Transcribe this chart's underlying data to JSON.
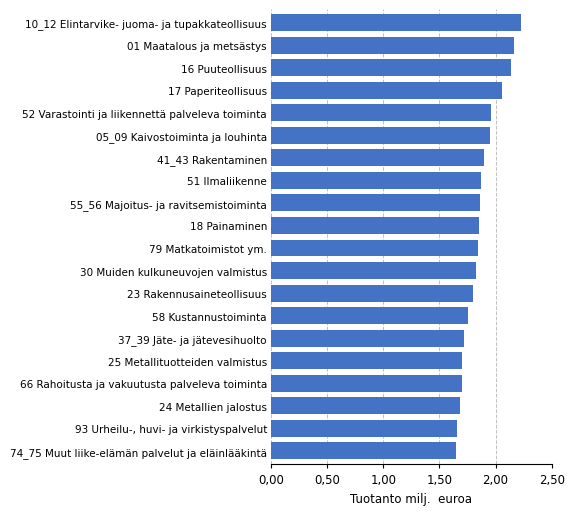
{
  "categories": [
    "74_75 Muut liike-elämän palvelut ja eläinlääkintä",
    "93 Urheilu-, huvi- ja virkistyspalvelut",
    "24 Metallien jalostus",
    "66 Rahoitusta ja vakuutusta palveleva toiminta",
    "25 Metallituotteiden valmistus",
    "37_39 Jäte- ja jätevesihuolto",
    "58 Kustannustoiminta",
    "23 Rakennusaineteollisuus",
    "30 Muiden kulkuneuvojen valmistus",
    "79 Matkatoimistot ym.",
    "18 Painaminen",
    "55_56 Majoitus- ja ravitsemistoiminta",
    "51 Ilmaliikenne",
    "41_43 Rakentaminen",
    "05_09 Kaivostoiminta ja louhinta",
    "52 Varastointi ja liikennettä palveleva toiminta",
    "17 Paperiteollisuus",
    "16 Puuteollisuus",
    "01 Maatalous ja metsästys",
    "10_12 Elintarvike- juoma- ja tupakkateollisuus"
  ],
  "values": [
    1.65,
    1.66,
    1.68,
    1.7,
    1.7,
    1.72,
    1.75,
    1.8,
    1.83,
    1.84,
    1.85,
    1.86,
    1.87,
    1.9,
    1.95,
    1.96,
    2.06,
    2.14,
    2.16,
    2.23
  ],
  "bar_color": "#4472C4",
  "xlabel": "Tuotanto milj.  euroa",
  "xlim": [
    0,
    2.5
  ],
  "xticks": [
    0.0,
    0.5,
    1.0,
    1.5,
    2.0,
    2.5
  ],
  "xtick_labels": [
    "0,00",
    "0,50",
    "1,00",
    "1,50",
    "2,00",
    "2,50"
  ],
  "grid_color": "#C0C0C0",
  "background_color": "#FFFFFF",
  "label_fontsize": 7.5,
  "tick_fontsize": 8.5
}
